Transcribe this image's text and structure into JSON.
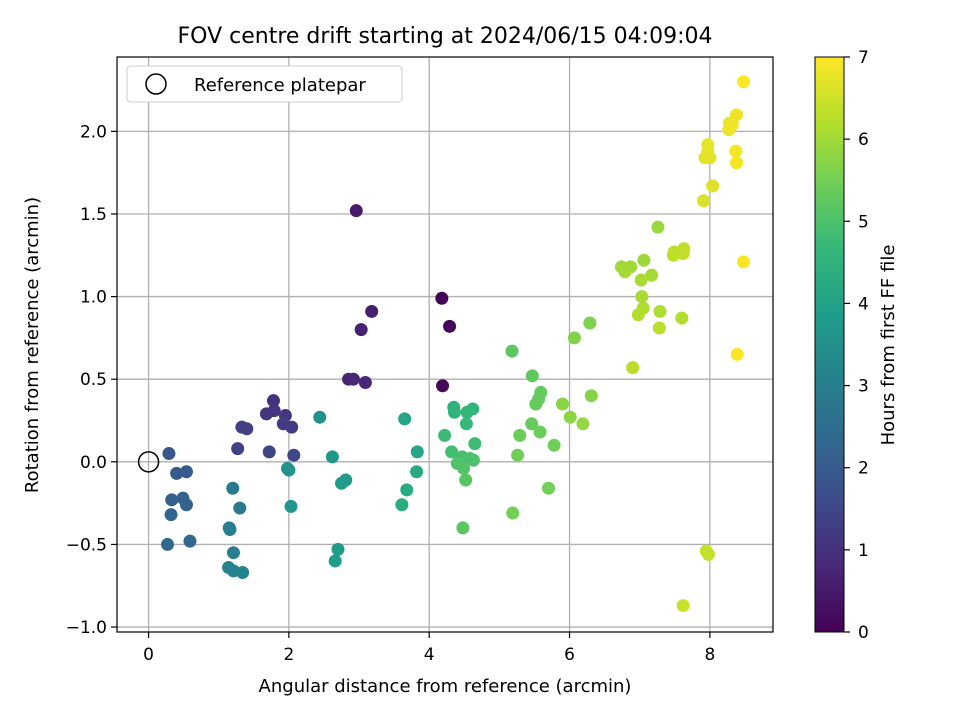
{
  "chart_data": {
    "type": "scatter",
    "title": "FOV centre drift starting at 2024/06/15 04:09:04",
    "xlabel": "Angular distance from reference (arcmin)",
    "ylabel": "Rotation from reference (arcmin)",
    "xlim": [
      -0.45,
      8.9
    ],
    "ylim": [
      -1.03,
      2.45
    ],
    "xticks": [
      0,
      2,
      4,
      6,
      8
    ],
    "xtick_labels": [
      "0",
      "2",
      "4",
      "6",
      "8"
    ],
    "yticks": [
      -1.0,
      -0.5,
      0.0,
      0.5,
      1.0,
      1.5,
      2.0
    ],
    "ytick_labels": [
      "−1.0",
      "−0.5",
      "0.0",
      "0.5",
      "1.0",
      "1.5",
      "2.0"
    ],
    "grid": true,
    "legend": {
      "position": "top-left",
      "entries": [
        "Reference platepar"
      ]
    },
    "reference_point": {
      "x": 0,
      "y": 0,
      "marker": "open-circle",
      "label": "Reference platepar"
    },
    "colorbar": {
      "label": "Hours from first FF file",
      "min": 0,
      "max": 7,
      "ticks": [
        0,
        1,
        2,
        3,
        4,
        5,
        6,
        7
      ],
      "tick_labels": [
        "0",
        "1",
        "2",
        "3",
        "4",
        "5",
        "6",
        "7"
      ],
      "colormap": "viridis",
      "colors": [
        "#440154",
        "#482878",
        "#3e4989",
        "#31688e",
        "#26828e",
        "#1f9e89",
        "#35b779",
        "#6ece58",
        "#b5de2b",
        "#fde725"
      ]
    },
    "points": [
      {
        "x": 4.18,
        "y": 0.99,
        "c": 0.05
      },
      {
        "x": 4.29,
        "y": 0.82,
        "c": 0.1
      },
      {
        "x": 4.19,
        "y": 0.46,
        "c": 0.15
      },
      {
        "x": 2.96,
        "y": 1.52,
        "c": 0.5
      },
      {
        "x": 3.18,
        "y": 0.91,
        "c": 0.6
      },
      {
        "x": 3.03,
        "y": 0.8,
        "c": 0.65
      },
      {
        "x": 2.85,
        "y": 0.5,
        "c": 0.7
      },
      {
        "x": 2.92,
        "y": 0.5,
        "c": 0.75
      },
      {
        "x": 3.09,
        "y": 0.48,
        "c": 0.8
      },
      {
        "x": 1.78,
        "y": 0.37,
        "c": 1.0
      },
      {
        "x": 1.79,
        "y": 0.31,
        "c": 1.05
      },
      {
        "x": 1.68,
        "y": 0.29,
        "c": 1.1
      },
      {
        "x": 1.95,
        "y": 0.28,
        "c": 1.15
      },
      {
        "x": 1.92,
        "y": 0.23,
        "c": 1.2
      },
      {
        "x": 2.04,
        "y": 0.21,
        "c": 1.25
      },
      {
        "x": 1.33,
        "y": 0.21,
        "c": 1.3
      },
      {
        "x": 1.4,
        "y": 0.2,
        "c": 1.35
      },
      {
        "x": 1.27,
        "y": 0.08,
        "c": 1.4
      },
      {
        "x": 1.72,
        "y": 0.06,
        "c": 1.45
      },
      {
        "x": 2.07,
        "y": 0.04,
        "c": 1.5
      },
      {
        "x": 0.29,
        "y": 0.05,
        "c": 1.9
      },
      {
        "x": 0.4,
        "y": -0.07,
        "c": 1.95
      },
      {
        "x": 0.54,
        "y": -0.06,
        "c": 2.0
      },
      {
        "x": 0.33,
        "y": -0.23,
        "c": 2.1
      },
      {
        "x": 0.49,
        "y": -0.22,
        "c": 2.15
      },
      {
        "x": 0.54,
        "y": -0.26,
        "c": 2.2
      },
      {
        "x": 0.32,
        "y": -0.32,
        "c": 2.25
      },
      {
        "x": 0.59,
        "y": -0.48,
        "c": 2.3
      },
      {
        "x": 0.27,
        "y": -0.5,
        "c": 2.35
      },
      {
        "x": 1.2,
        "y": -0.16,
        "c": 2.8
      },
      {
        "x": 1.3,
        "y": -0.28,
        "c": 2.85
      },
      {
        "x": 1.15,
        "y": -0.4,
        "c": 2.9
      },
      {
        "x": 1.16,
        "y": -0.41,
        "c": 2.95
      },
      {
        "x": 1.21,
        "y": -0.55,
        "c": 3.0
      },
      {
        "x": 1.14,
        "y": -0.64,
        "c": 3.05
      },
      {
        "x": 1.21,
        "y": -0.66,
        "c": 3.1
      },
      {
        "x": 1.34,
        "y": -0.67,
        "c": 3.15
      },
      {
        "x": 2.44,
        "y": 0.27,
        "c": 3.5
      },
      {
        "x": 1.98,
        "y": -0.04,
        "c": 3.55
      },
      {
        "x": 2.0,
        "y": -0.05,
        "c": 3.6
      },
      {
        "x": 2.03,
        "y": -0.27,
        "c": 3.65
      },
      {
        "x": 2.62,
        "y": 0.03,
        "c": 3.7
      },
      {
        "x": 2.81,
        "y": -0.11,
        "c": 3.75
      },
      {
        "x": 2.75,
        "y": -0.13,
        "c": 3.8
      },
      {
        "x": 2.7,
        "y": -0.53,
        "c": 3.85
      },
      {
        "x": 2.66,
        "y": -0.6,
        "c": 3.9
      },
      {
        "x": 3.65,
        "y": 0.26,
        "c": 4.1
      },
      {
        "x": 3.83,
        "y": 0.06,
        "c": 4.15
      },
      {
        "x": 3.82,
        "y": -0.06,
        "c": 4.2
      },
      {
        "x": 3.68,
        "y": -0.17,
        "c": 4.25
      },
      {
        "x": 3.61,
        "y": -0.26,
        "c": 4.3
      },
      {
        "x": 4.35,
        "y": 0.33,
        "c": 4.5
      },
      {
        "x": 4.36,
        "y": 0.3,
        "c": 4.55
      },
      {
        "x": 4.62,
        "y": 0.32,
        "c": 4.6
      },
      {
        "x": 4.54,
        "y": 0.3,
        "c": 4.65
      },
      {
        "x": 4.53,
        "y": 0.23,
        "c": 4.7
      },
      {
        "x": 4.22,
        "y": 0.16,
        "c": 4.75
      },
      {
        "x": 4.65,
        "y": 0.11,
        "c": 4.8
      },
      {
        "x": 4.32,
        "y": 0.06,
        "c": 4.85
      },
      {
        "x": 4.47,
        "y": 0.03,
        "c": 4.9
      },
      {
        "x": 4.58,
        "y": 0.02,
        "c": 4.95
      },
      {
        "x": 4.63,
        "y": 0.01,
        "c": 5.0
      },
      {
        "x": 4.4,
        "y": -0.01,
        "c": 5.05
      },
      {
        "x": 4.49,
        "y": -0.04,
        "c": 5.1
      },
      {
        "x": 4.52,
        "y": -0.11,
        "c": 5.15
      },
      {
        "x": 4.48,
        "y": -0.4,
        "c": 5.2
      },
      {
        "x": 5.18,
        "y": 0.67,
        "c": 5.2
      },
      {
        "x": 5.47,
        "y": 0.52,
        "c": 5.25
      },
      {
        "x": 5.59,
        "y": 0.42,
        "c": 5.3
      },
      {
        "x": 5.56,
        "y": 0.38,
        "c": 5.3
      },
      {
        "x": 5.52,
        "y": 0.35,
        "c": 5.35
      },
      {
        "x": 5.46,
        "y": 0.23,
        "c": 5.35
      },
      {
        "x": 5.58,
        "y": 0.18,
        "c": 5.4
      },
      {
        "x": 5.29,
        "y": 0.16,
        "c": 5.4
      },
      {
        "x": 5.78,
        "y": 0.1,
        "c": 5.45
      },
      {
        "x": 5.26,
        "y": 0.04,
        "c": 5.45
      },
      {
        "x": 5.7,
        "y": -0.16,
        "c": 5.5
      },
      {
        "x": 5.19,
        "y": -0.31,
        "c": 5.5
      },
      {
        "x": 6.29,
        "y": 0.84,
        "c": 5.6
      },
      {
        "x": 6.07,
        "y": 0.75,
        "c": 5.65
      },
      {
        "x": 6.31,
        "y": 0.4,
        "c": 5.7
      },
      {
        "x": 5.9,
        "y": 0.35,
        "c": 5.75
      },
      {
        "x": 6.01,
        "y": 0.27,
        "c": 5.8
      },
      {
        "x": 6.19,
        "y": 0.23,
        "c": 5.85
      },
      {
        "x": 7.26,
        "y": 1.42,
        "c": 5.9
      },
      {
        "x": 7.06,
        "y": 1.22,
        "c": 5.95
      },
      {
        "x": 6.87,
        "y": 1.18,
        "c": 6.0
      },
      {
        "x": 6.74,
        "y": 1.18,
        "c": 6.0
      },
      {
        "x": 6.79,
        "y": 1.15,
        "c": 6.05
      },
      {
        "x": 7.17,
        "y": 1.13,
        "c": 6.05
      },
      {
        "x": 7.02,
        "y": 1.1,
        "c": 6.1
      },
      {
        "x": 7.03,
        "y": 1.0,
        "c": 6.1
      },
      {
        "x": 7.05,
        "y": 0.93,
        "c": 6.15
      },
      {
        "x": 7.29,
        "y": 0.91,
        "c": 6.15
      },
      {
        "x": 6.98,
        "y": 0.89,
        "c": 6.2
      },
      {
        "x": 7.6,
        "y": 0.87,
        "c": 6.2
      },
      {
        "x": 7.28,
        "y": 0.81,
        "c": 6.25
      },
      {
        "x": 6.9,
        "y": 0.57,
        "c": 6.25
      },
      {
        "x": 7.49,
        "y": 1.27,
        "c": 6.3
      },
      {
        "x": 7.48,
        "y": 1.25,
        "c": 6.3
      },
      {
        "x": 7.63,
        "y": 1.29,
        "c": 6.35
      },
      {
        "x": 7.62,
        "y": 1.26,
        "c": 6.35
      },
      {
        "x": 7.95,
        "y": -0.54,
        "c": 6.4
      },
      {
        "x": 7.98,
        "y": -0.56,
        "c": 6.4
      },
      {
        "x": 7.62,
        "y": -0.87,
        "c": 6.45
      },
      {
        "x": 7.91,
        "y": 1.58,
        "c": 6.6
      },
      {
        "x": 8.04,
        "y": 1.67,
        "c": 6.65
      },
      {
        "x": 7.93,
        "y": 1.84,
        "c": 6.7
      },
      {
        "x": 8.0,
        "y": 1.84,
        "c": 6.7
      },
      {
        "x": 7.97,
        "y": 1.88,
        "c": 6.75
      },
      {
        "x": 7.97,
        "y": 1.92,
        "c": 6.75
      },
      {
        "x": 8.27,
        "y": 2.01,
        "c": 6.8
      },
      {
        "x": 8.28,
        "y": 2.05,
        "c": 6.8
      },
      {
        "x": 8.32,
        "y": 2.04,
        "c": 6.85
      },
      {
        "x": 8.38,
        "y": 2.1,
        "c": 6.85
      },
      {
        "x": 8.37,
        "y": 1.88,
        "c": 6.9
      },
      {
        "x": 8.38,
        "y": 1.81,
        "c": 6.9
      },
      {
        "x": 8.48,
        "y": 1.21,
        "c": 6.95
      },
      {
        "x": 8.39,
        "y": 0.65,
        "c": 6.95
      },
      {
        "x": 8.48,
        "y": 2.3,
        "c": 7.0
      }
    ]
  }
}
